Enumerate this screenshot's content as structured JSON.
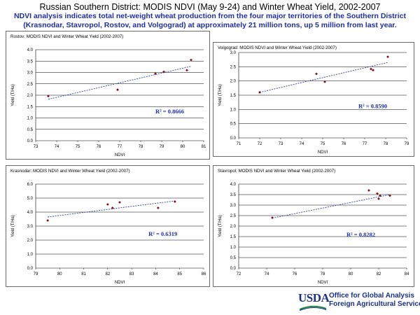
{
  "header": {
    "title": "Russian Southern District:  MODIS NDVI (May 9-24) and Winter Wheat Yield, 2002-2007",
    "subtitle_line1": "NDVI analysis indicates total net-weight wheat production from the four major territories of the Southern District",
    "subtitle_line2": "(Krasnodar, Stavropol, Rostov, and Volgograd) at approximately 21 million tons, up 5 million from last year."
  },
  "footer": {
    "logo_text": "USDA",
    "line1": "Office for Global Analysis",
    "line2": "Foreign Agricultural Service"
  },
  "colors": {
    "title_blue": "#1f2ea8",
    "point": "#7a1015",
    "trend": "#2a3f9a",
    "grid": "#000000",
    "logo_blue": "#1a2f8a"
  },
  "chart_data": [
    {
      "type": "scatter",
      "title": "Rostov:  MODIS NDVI and Winter Wheat Yield (2002-2007)",
      "xlabel": "NDVI",
      "ylabel": "Yield (T/Ha)",
      "xlim": [
        73,
        81
      ],
      "ylim": [
        0,
        4
      ],
      "xticks": [
        73,
        74,
        75,
        76,
        77,
        78,
        79,
        80,
        81
      ],
      "yticks": [
        0,
        0.5,
        1,
        1.5,
        2,
        2.5,
        3,
        3.5,
        4
      ],
      "ytick_labels": [
        "0.0",
        "0.5",
        "1.0",
        "1.5",
        "2.0",
        "2.5",
        "3.0",
        "3.5",
        "4.0"
      ],
      "x": [
        73.6,
        76.9,
        78.7,
        79.1,
        80.2,
        80.4
      ],
      "y": [
        1.96,
        2.24,
        2.95,
        3.03,
        3.1,
        3.55
      ],
      "trend": [
        [
          73.6,
          1.82
        ],
        [
          80.4,
          3.27
        ]
      ],
      "r2_label": "R² = 0.8666",
      "r2_pos": [
        78.7,
        1.2
      ]
    },
    {
      "type": "scatter",
      "title": "Volgograd:  MODIS NDVI and Winter Wheat Yield (2002-2007)",
      "xlabel": "NDVI",
      "ylabel": "Yield (T/Ha)",
      "xlim": [
        71,
        79
      ],
      "ylim": [
        0,
        3
      ],
      "xticks": [
        71,
        72,
        73,
        74,
        75,
        76,
        77,
        78,
        79
      ],
      "yticks": [
        0,
        0.5,
        1,
        1.5,
        2,
        2.5,
        3
      ],
      "ytick_labels": [
        "0.0",
        "0.5",
        "1.0",
        "1.5",
        "2.0",
        "2.5",
        "3.0"
      ],
      "x": [
        72.0,
        74.7,
        75.1,
        77.3,
        77.4,
        78.1
      ],
      "y": [
        1.6,
        2.25,
        1.97,
        2.42,
        2.38,
        2.85
      ],
      "trend": [
        [
          72.0,
          1.6
        ],
        [
          78.1,
          2.65
        ]
      ],
      "r2_label": "R² = 0.8590",
      "r2_pos": [
        76.7,
        1.05
      ]
    },
    {
      "type": "scatter",
      "title": "Krasnodar:  MODIS NDVI and Winter Wheat Yield (2002-2007)",
      "xlabel": "NDVI",
      "ylabel": "Yield (T/Ha)",
      "xlim": [
        79,
        86
      ],
      "ylim": [
        0,
        6
      ],
      "xticks": [
        79,
        80,
        81,
        82,
        83,
        84,
        85,
        86
      ],
      "yticks": [
        0,
        1,
        2,
        3,
        4,
        5,
        6
      ],
      "ytick_labels": [
        "0.0",
        "1.0",
        "2.0",
        "3.0",
        "4.0",
        "5.0",
        "6.0"
      ],
      "x": [
        79.5,
        82.0,
        82.2,
        82.5,
        84.1,
        84.8
      ],
      "y": [
        3.4,
        4.55,
        4.3,
        4.7,
        4.3,
        4.75
      ],
      "trend": [
        [
          79.5,
          3.65
        ],
        [
          84.8,
          4.8
        ]
      ],
      "r2_label": "R² = 0.6319",
      "r2_pos": [
        83.7,
        2.3
      ]
    },
    {
      "type": "scatter",
      "title": "Stavropol:  MODIS NDVI and Winter Wheat Yield (2002-2007)",
      "xlabel": "NDVI",
      "ylabel": "Yield (T/Ha)",
      "xlim": [
        72,
        84
      ],
      "ylim": [
        0,
        4
      ],
      "xticks": [
        72,
        74,
        76,
        78,
        80,
        82,
        84
      ],
      "yticks": [
        0,
        0.5,
        1,
        1.5,
        2,
        2.5,
        3,
        3.5,
        4
      ],
      "ytick_labels": [
        "0.0",
        "0.5",
        "1.0",
        "1.5",
        "2.0",
        "2.5",
        "3.0",
        "3.5",
        "4.0"
      ],
      "x": [
        74.4,
        81.3,
        81.9,
        82.0,
        82.1,
        82.8
      ],
      "y": [
        2.4,
        3.7,
        3.55,
        3.3,
        3.45,
        3.45
      ],
      "trend": [
        [
          74.4,
          2.38
        ],
        [
          82.8,
          3.5
        ]
      ],
      "r2_label": "R² = 0.8282",
      "r2_pos": [
        79.7,
        1.5
      ]
    }
  ]
}
